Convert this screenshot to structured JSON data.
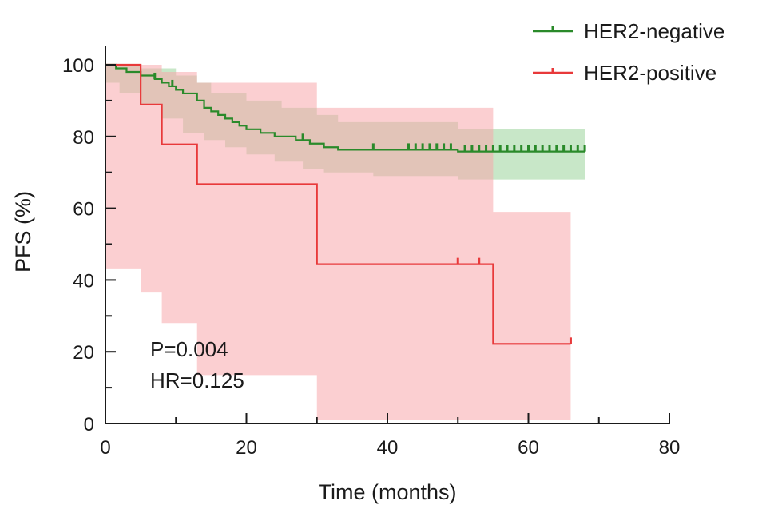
{
  "chart_data": {
    "type": "line",
    "subtype": "kaplan-meier",
    "title": "",
    "xlabel": "Time (months)",
    "ylabel": "PFS (%)",
    "xlim": [
      0,
      80
    ],
    "ylim": [
      0,
      100
    ],
    "xticks": [
      0,
      20,
      40,
      60,
      80
    ],
    "yticks": [
      0,
      20,
      40,
      60,
      80,
      100
    ],
    "grid": false,
    "legend_position": "top-right",
    "annotations": [
      "P=0.004",
      "HR=0.125"
    ],
    "series": [
      {
        "name": "HER2-negative",
        "color": "#2a8a2a",
        "band_color": "#9ad39a",
        "steps": [
          [
            0,
            100
          ],
          [
            1.5,
            99
          ],
          [
            3,
            98
          ],
          [
            5,
            97
          ],
          [
            7,
            96
          ],
          [
            8,
            95
          ],
          [
            9,
            94
          ],
          [
            10,
            93
          ],
          [
            11,
            92
          ],
          [
            13,
            90
          ],
          [
            14,
            88
          ],
          [
            15,
            87
          ],
          [
            16,
            86
          ],
          [
            17,
            85
          ],
          [
            18,
            84
          ],
          [
            19,
            83
          ],
          [
            20,
            82
          ],
          [
            22,
            81
          ],
          [
            24,
            80
          ],
          [
            27,
            79
          ],
          [
            29,
            78
          ],
          [
            31,
            77
          ],
          [
            33,
            76.3
          ],
          [
            50,
            75.8
          ],
          [
            68,
            75.8
          ]
        ],
        "censored": [
          7,
          9.5,
          28,
          38,
          43,
          44,
          45,
          46,
          47,
          48,
          49,
          51,
          52,
          53,
          54,
          55,
          56,
          57,
          58,
          59,
          60,
          61,
          62,
          63,
          64,
          65,
          66,
          67,
          68
        ],
        "ci_upper": [
          [
            0,
            100
          ],
          [
            5,
            99
          ],
          [
            10,
            97
          ],
          [
            13,
            95
          ],
          [
            15,
            92
          ],
          [
            20,
            90
          ],
          [
            25,
            88
          ],
          [
            30,
            86
          ],
          [
            33,
            84
          ],
          [
            50,
            82
          ],
          [
            68,
            81
          ]
        ],
        "ci_lower": [
          [
            0,
            100
          ],
          [
            2,
            95
          ],
          [
            5,
            92
          ],
          [
            8,
            89
          ],
          [
            11,
            85
          ],
          [
            14,
            81
          ],
          [
            17,
            79
          ],
          [
            20,
            77
          ],
          [
            24,
            75
          ],
          [
            28,
            73
          ],
          [
            31,
            71
          ],
          [
            38,
            70
          ],
          [
            50,
            69
          ],
          [
            55,
            68
          ],
          [
            68,
            68
          ]
        ]
      },
      {
        "name": "HER2-positive",
        "color": "#e8393a",
        "band_color": "#f7a7ab",
        "steps": [
          [
            0,
            100
          ],
          [
            5,
            88.9
          ],
          [
            8,
            77.8
          ],
          [
            13,
            66.7
          ],
          [
            30,
            44.4
          ],
          [
            55,
            22.2
          ],
          [
            66,
            22.2
          ]
        ],
        "censored": [
          50,
          53,
          66
        ],
        "ci_upper": [
          [
            0,
            100
          ],
          [
            5,
            100
          ],
          [
            8,
            98
          ],
          [
            13,
            95
          ],
          [
            30,
            88
          ],
          [
            55,
            59
          ],
          [
            66,
            59
          ]
        ],
        "ci_lower": [
          [
            0,
            100
          ],
          [
            5,
            43
          ],
          [
            8,
            36.5
          ],
          [
            13,
            28
          ],
          [
            30,
            13.5
          ],
          [
            55,
            1
          ],
          [
            66,
            1
          ]
        ]
      }
    ]
  }
}
